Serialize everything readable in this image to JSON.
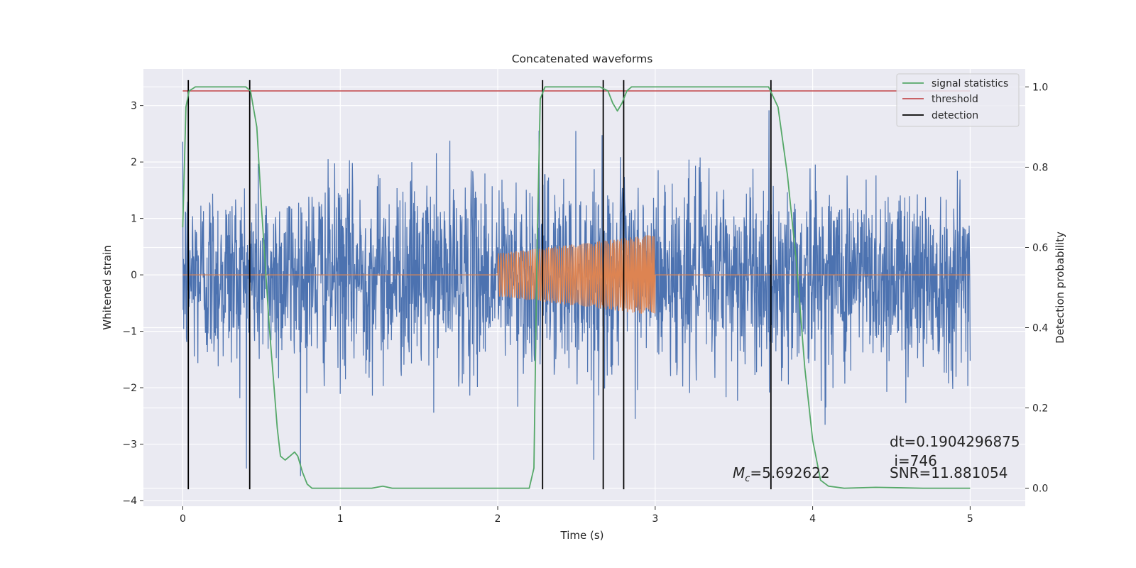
{
  "chart_data": {
    "type": "line",
    "title": "Concatenated waveforms",
    "xlabel": "Time (s)",
    "ylabel": "Whitened strain",
    "ylabel_right": "Detection probability",
    "xlim": [
      -0.25,
      5.35
    ],
    "ylim": [
      -4.1,
      3.65
    ],
    "ylim_right": [
      -0.045,
      1.045
    ],
    "x_ticks": [
      "0",
      "1",
      "2",
      "3",
      "4",
      "5"
    ],
    "x_tick_values": [
      0,
      1,
      2,
      3,
      4,
      5
    ],
    "y_ticks": [
      "−4",
      "−3",
      "−2",
      "−1",
      "0",
      "1",
      "2",
      "3"
    ],
    "y_tick_values": [
      -4,
      -3,
      -2,
      -1,
      0,
      1,
      2,
      3
    ],
    "y2_ticks": [
      "0.0",
      "0.2",
      "0.4",
      "0.6",
      "0.8",
      "1.0"
    ],
    "y2_tick_values": [
      0,
      0.2,
      0.4,
      0.6,
      0.8,
      1.0
    ],
    "grid": true,
    "legend_position": "top-right",
    "legend": [
      {
        "label": "signal statistics",
        "color": "#55a868"
      },
      {
        "label": "threshold",
        "color": "#c44e52"
      },
      {
        "label": "detection",
        "color": "#000000"
      }
    ],
    "colors": {
      "noise": "#4c72b0",
      "injected_signal": "#dd8452",
      "signal_statistics": "#55a868",
      "threshold": "#c44e52",
      "detection": "#000000",
      "axes_background": "#eaeaf2",
      "grid": "#ffffff"
    },
    "series": [
      {
        "name": "signal statistics",
        "axis": "right",
        "x": [
          0,
          0.02,
          0.04,
          0.08,
          0.2,
          0.4,
          0.43,
          0.47,
          0.5,
          0.55,
          0.6,
          0.62,
          0.65,
          0.68,
          0.71,
          0.73,
          0.76,
          0.79,
          0.82,
          0.9,
          1.0,
          1.2,
          1.27,
          1.33,
          1.5,
          2.0,
          2.2,
          2.23,
          2.25,
          2.27,
          2.3,
          2.5,
          2.65,
          2.7,
          2.73,
          2.76,
          2.79,
          2.82,
          2.85,
          2.9,
          3.0,
          3.5,
          3.72,
          3.78,
          3.84,
          3.9,
          3.95,
          4.0,
          4.05,
          4.1,
          4.2,
          4.4,
          4.7,
          5.0
        ],
        "y": [
          0.65,
          0.95,
          0.99,
          1.0,
          1.0,
          1.0,
          0.99,
          0.9,
          0.7,
          0.4,
          0.15,
          0.08,
          0.07,
          0.08,
          0.09,
          0.08,
          0.04,
          0.01,
          0.0,
          0.0,
          0.0,
          0.0,
          0.005,
          0.0,
          0.0,
          0.0,
          0.0,
          0.05,
          0.6,
          0.97,
          1.0,
          1.0,
          1.0,
          0.99,
          0.96,
          0.94,
          0.96,
          0.99,
          1.0,
          1.0,
          1.0,
          1.0,
          1.0,
          0.95,
          0.78,
          0.55,
          0.3,
          0.12,
          0.02,
          0.005,
          0.0,
          0.002,
          0.0,
          0.0
        ]
      },
      {
        "name": "threshold",
        "axis": "right",
        "x": [
          0,
          5
        ],
        "y": [
          0.99,
          0.99
        ]
      },
      {
        "name": "detection",
        "axis": "left",
        "x": [
          0.035,
          0.425,
          2.285,
          2.67,
          2.8,
          3.735
        ],
        "y_range": [
          -3.8,
          3.45
        ]
      },
      {
        "axis": "left",
        "x_range": [
          0,
          5
        ],
        "amplitude_range": [
          -3.7,
          3.45
        ]
      },
      {
        "axis": "left",
        "x_range": [
          2.0,
          3.0
        ],
        "start_amplitude": 0.38,
        "end_amplitude": 0.72,
        "cycles": 60
      }
    ],
    "annotations": {
      "mc_symbol": "M",
      "mc_subscript": "c",
      "mc_value": "=5.692622",
      "dt": "dt=0.1904296875",
      "i": " i=746",
      "snr": "SNR=11.881054"
    }
  }
}
